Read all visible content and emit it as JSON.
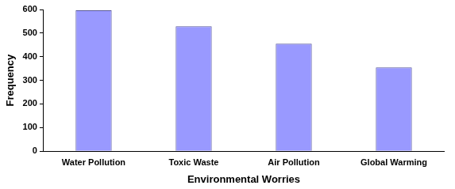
{
  "chart_data": {
    "type": "bar",
    "categories": [
      "Water Pollution",
      "Toxic Waste",
      "Air Pollution",
      "Global Warming"
    ],
    "values": [
      597,
      529,
      455,
      355
    ],
    "color": "#9999ff",
    "x_label": "Environmental Worries",
    "y_label": "Frequency",
    "ylim": [
      0,
      600
    ],
    "yticks": [
      0,
      100,
      200,
      300,
      400,
      500,
      600
    ],
    "grid": false
  }
}
